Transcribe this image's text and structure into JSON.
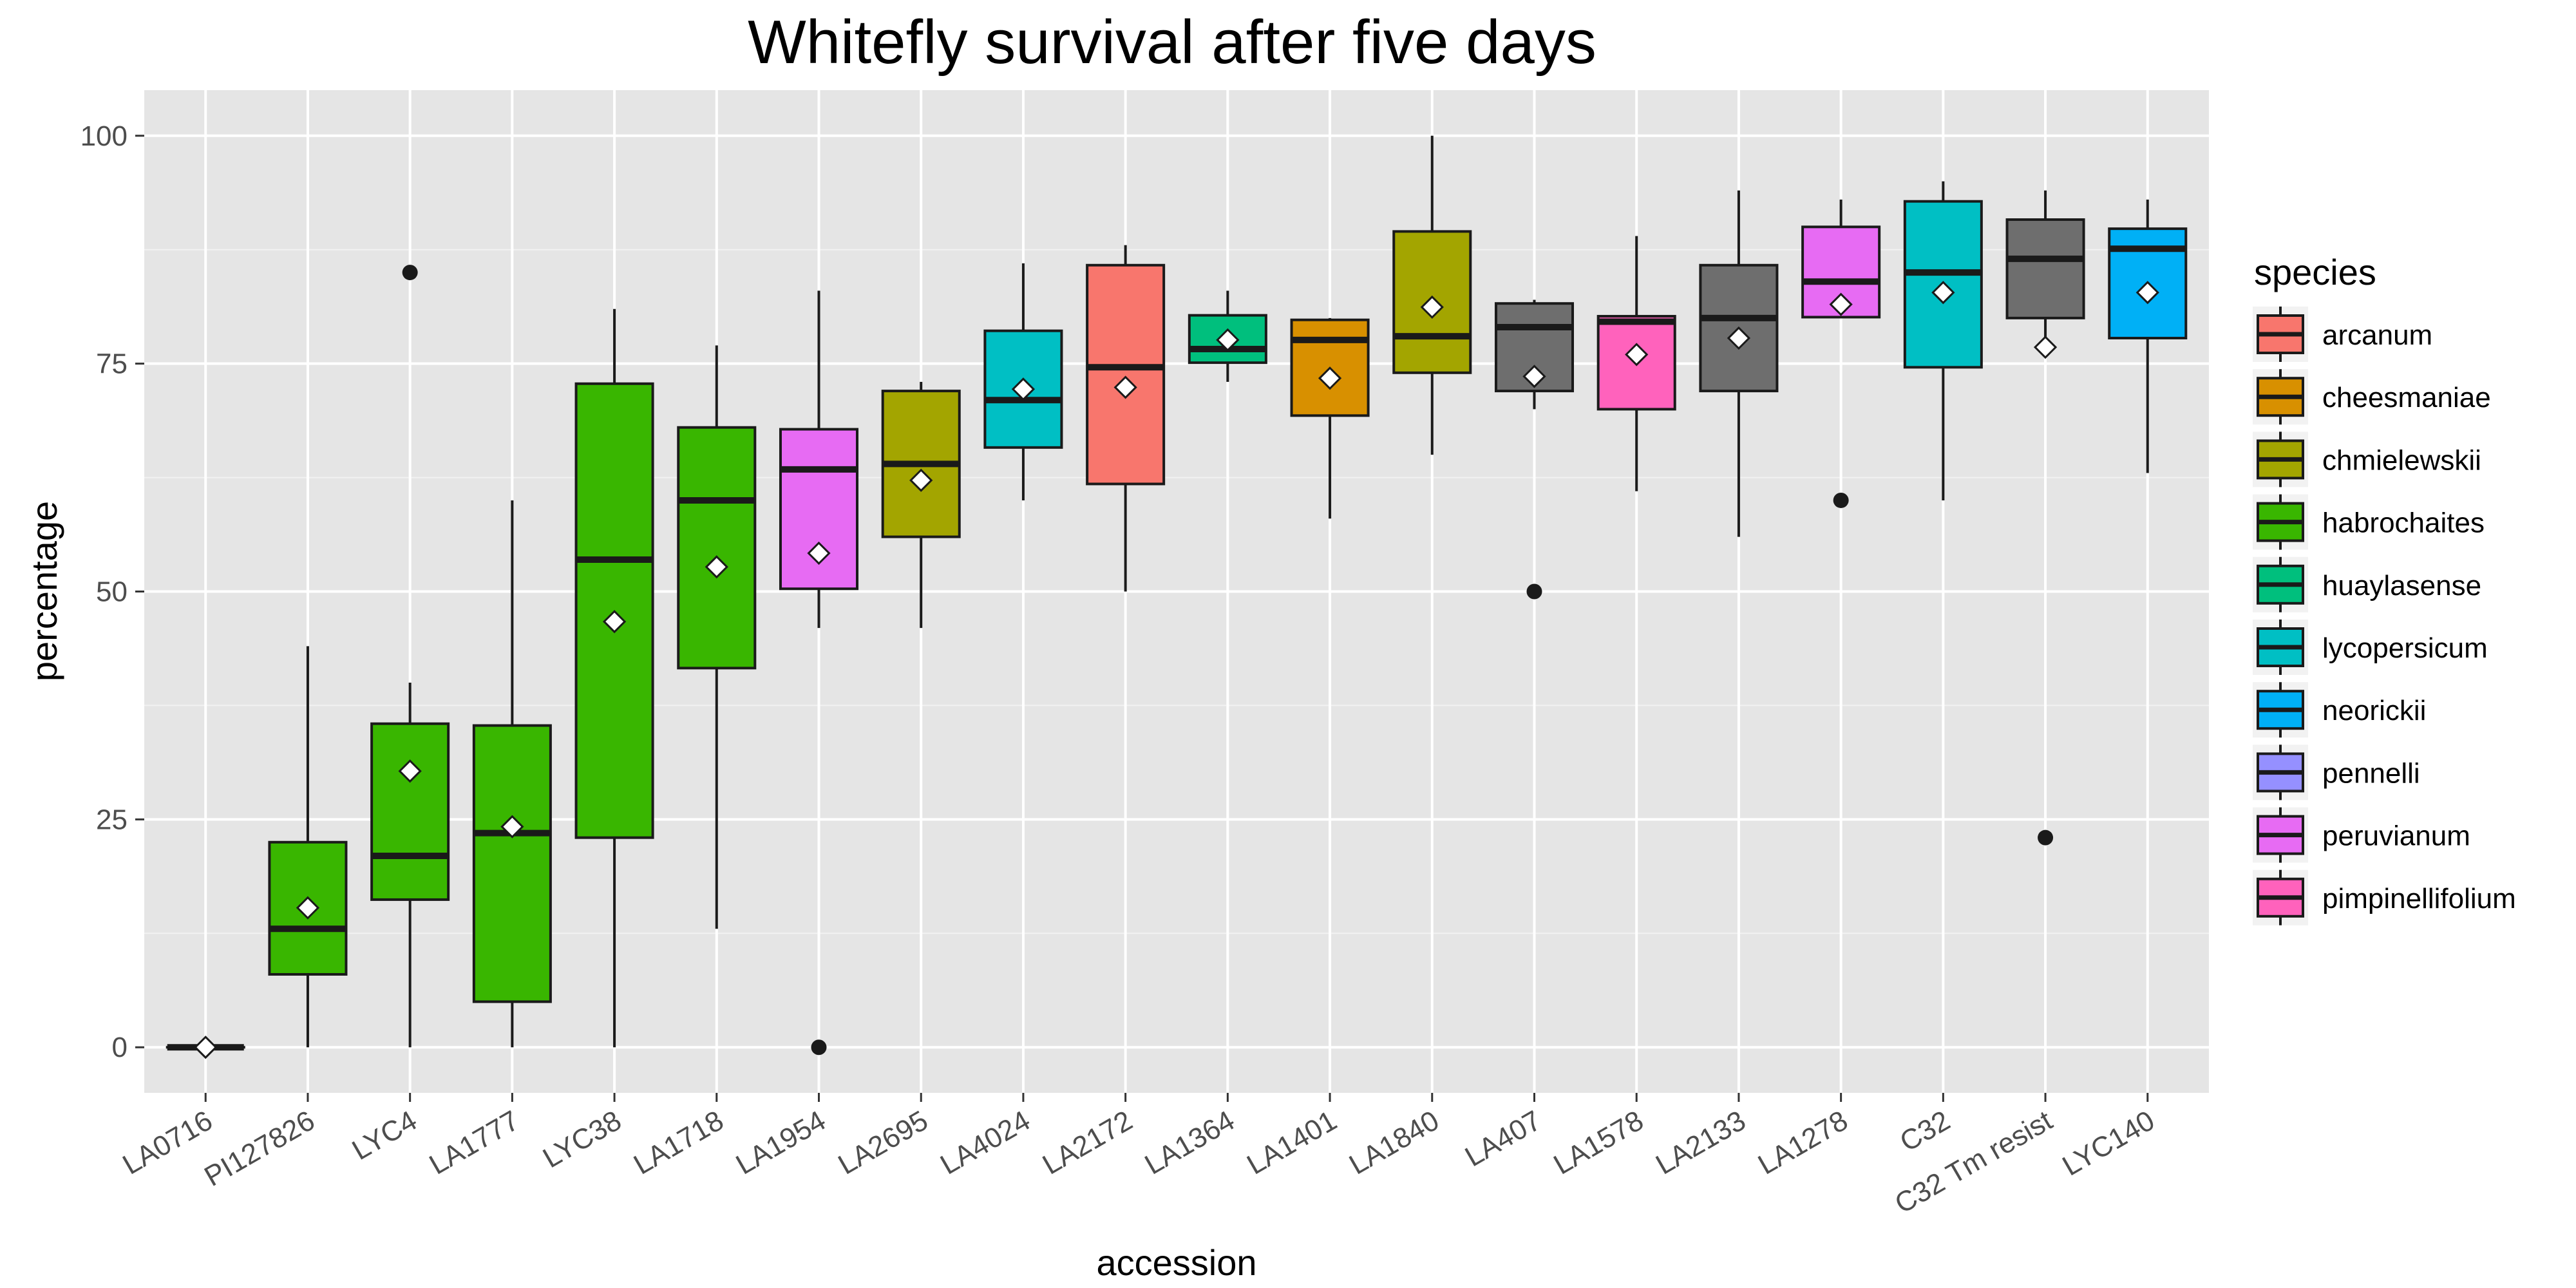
{
  "chart_data": {
    "type": "box",
    "title": "Whitefly survival after five days",
    "xlabel": "accession",
    "ylabel": "percentage",
    "ylim": [
      -5,
      105
    ],
    "yticks": [
      0,
      25,
      50,
      75,
      100
    ],
    "grid": true,
    "legend_title": "species",
    "legend_position": "right",
    "species": [
      {
        "name": "arcanum",
        "color": "#F8766D"
      },
      {
        "name": "cheesmaniae",
        "color": "#D89000"
      },
      {
        "name": "chmielewskii",
        "color": "#A3A500"
      },
      {
        "name": "habrochaites",
        "color": "#39B600"
      },
      {
        "name": "huaylasense",
        "color": "#00BF7D"
      },
      {
        "name": "lycopersicum",
        "color": "#00BFC4"
      },
      {
        "name": "neorickii",
        "color": "#00B0F6"
      },
      {
        "name": "pennelli",
        "color": "#9590FF"
      },
      {
        "name": "peruvianum",
        "color": "#E76BF3"
      },
      {
        "name": "pimpinellifolium",
        "color": "#FF62BC"
      }
    ],
    "boxes": [
      {
        "accession": "LA0716",
        "color": "#39B600",
        "min": 0,
        "q1": 0,
        "median": 0,
        "q3": 0,
        "max": 0,
        "mean": 0,
        "outliers": []
      },
      {
        "accession": "PI127826",
        "color": "#39B600",
        "min": 0,
        "q1": 8,
        "median": 13,
        "q3": 22.5,
        "max": 44,
        "mean": 15.3,
        "outliers": []
      },
      {
        "accession": "LYC4",
        "color": "#39B600",
        "min": 0,
        "q1": 16.2,
        "median": 21,
        "q3": 35.5,
        "max": 40,
        "mean": 30.3,
        "outliers": [
          85
        ]
      },
      {
        "accession": "LA1777",
        "color": "#39B600",
        "min": 0,
        "q1": 5,
        "median": 23.5,
        "q3": 35.3,
        "max": 60,
        "mean": 24.2,
        "outliers": []
      },
      {
        "accession": "LYC38",
        "color": "#39B600",
        "min": 0,
        "q1": 23,
        "median": 53.5,
        "q3": 72.8,
        "max": 81,
        "mean": 46.7,
        "outliers": []
      },
      {
        "accession": "LA1718",
        "color": "#39B600",
        "min": 13,
        "q1": 41.6,
        "median": 60,
        "q3": 68,
        "max": 77,
        "mean": 52.7,
        "outliers": []
      },
      {
        "accession": "LA1954",
        "color": "#E76BF3",
        "min": 46,
        "q1": 50.3,
        "median": 63.4,
        "q3": 67.8,
        "max": 83,
        "mean": 54.2,
        "outliers": [
          0
        ]
      },
      {
        "accession": "LA2695",
        "color": "#A3A500",
        "min": 46,
        "q1": 56,
        "median": 64,
        "q3": 72,
        "max": 73,
        "mean": 62.2,
        "outliers": []
      },
      {
        "accession": "LA4024",
        "color": "#00BFC4",
        "min": 60,
        "q1": 65.8,
        "median": 71,
        "q3": 78.6,
        "max": 86,
        "mean": 72.2,
        "outliers": []
      },
      {
        "accession": "LA2172",
        "color": "#F8766D",
        "min": 50,
        "q1": 61.8,
        "median": 74.6,
        "q3": 85.8,
        "max": 88,
        "mean": 72.4,
        "outliers": []
      },
      {
        "accession": "LA1364",
        "color": "#00BF7D",
        "min": 73,
        "q1": 75.1,
        "median": 76.6,
        "q3": 80.3,
        "max": 83,
        "mean": 77.6,
        "outliers": []
      },
      {
        "accession": "LA1401",
        "color": "#D89000",
        "min": 58,
        "q1": 69.3,
        "median": 77.6,
        "q3": 79.8,
        "max": 80,
        "mean": 73.4,
        "outliers": []
      },
      {
        "accession": "LA1840",
        "color": "#A3A500",
        "min": 65,
        "q1": 74,
        "median": 78,
        "q3": 89.5,
        "max": 100,
        "mean": 81.2,
        "outliers": []
      },
      {
        "accession": "LA407",
        "color": "#6E6E6E",
        "min": 70,
        "q1": 72,
        "median": 79,
        "q3": 81.6,
        "max": 82,
        "mean": 73.6,
        "outliers": [
          50
        ]
      },
      {
        "accession": "LA1578",
        "color": "#FF62BC",
        "min": 61,
        "q1": 70,
        "median": 79.6,
        "q3": 80.2,
        "max": 89,
        "mean": 76,
        "outliers": []
      },
      {
        "accession": "LA2133",
        "color": "#6E6E6E",
        "min": 56,
        "q1": 72,
        "median": 80,
        "q3": 85.8,
        "max": 94,
        "mean": 77.8,
        "outliers": []
      },
      {
        "accession": "LA1278",
        "color": "#E76BF3",
        "min": 80,
        "q1": 80.1,
        "median": 84,
        "q3": 90,
        "max": 93,
        "mean": 81.5,
        "outliers": [
          60
        ]
      },
      {
        "accession": "C32",
        "color": "#00BFC4",
        "min": 60,
        "q1": 74.6,
        "median": 85,
        "q3": 92.8,
        "max": 95,
        "mean": 82.8,
        "outliers": []
      },
      {
        "accession": "C32 Tm resist",
        "color": "#6E6E6E",
        "min": 76,
        "q1": 80,
        "median": 86.5,
        "q3": 90.8,
        "max": 94,
        "mean": 76.8,
        "outliers": [
          23
        ]
      },
      {
        "accession": "LYC140",
        "color": "#00B0F6",
        "min": 63,
        "q1": 77.8,
        "median": 87.6,
        "q3": 89.8,
        "max": 93,
        "mean": 82.8,
        "outliers": []
      }
    ]
  }
}
